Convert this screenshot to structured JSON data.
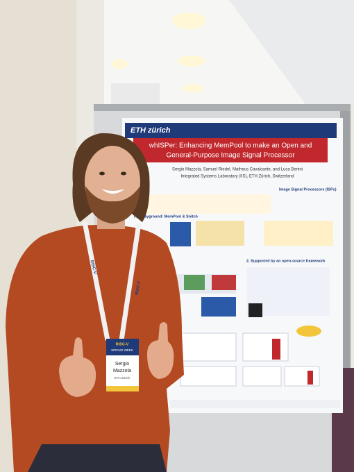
{
  "poster": {
    "header": "ETH zürich",
    "title_lines": [
      "whISPer: Enhancing MemPool to make an Open and",
      "General-Purpose Image Signal Processor"
    ],
    "authors": "Sergio Mazzola, Samuel Riedel, Matheus Cavalcante, and Luca Benini",
    "affiliation": "Integrated Systems Laboratory (IIS), ETH Zürich, Switzerland",
    "sections": [
      "Image Signal Processors (ISPs)",
      "The playground: MemPool & Snitch",
      "2. Supported by an open-source framework"
    ]
  },
  "badge": {
    "event_lines": [
      "RISC-V",
      "SPRING WEEK"
    ],
    "name_lines": [
      "Sergio",
      "Mazzola"
    ],
    "org": "ETH Zürich"
  },
  "lanyard": "RISC-V"
}
